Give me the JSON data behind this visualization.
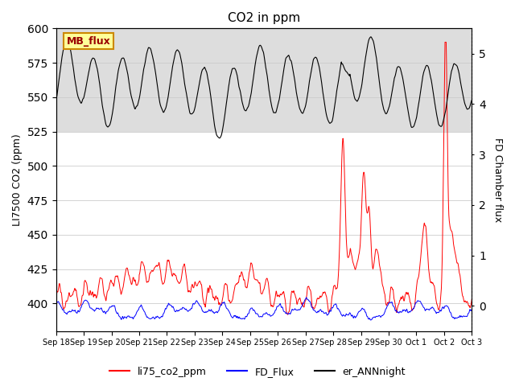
{
  "title": "CO2 in ppm",
  "ylabel_left": "LI7500 CO2 (ppm)",
  "ylabel_right": "FD Chamber flux",
  "ylim_left": [
    380,
    600
  ],
  "ylim_right": [
    -0.5,
    5.5
  ],
  "background_color": "#ffffff",
  "gray_band_low": 525,
  "gray_band_high": 600,
  "xlabel_dates": [
    "Sep 18",
    "Sep 19",
    "Sep 20",
    "Sep 21",
    "Sep 22",
    "Sep 23",
    "Sep 24",
    "Sep 25",
    "Sep 26",
    "Sep 27",
    "Sep 28",
    "Sep 29",
    "Sep 30",
    "Oct 1",
    "Oct 2",
    "Oct 3"
  ],
  "legend_entries": [
    "li75_co2_ppm",
    "FD_Flux",
    "er_ANNnight"
  ],
  "legend_colors": [
    "red",
    "blue",
    "black"
  ],
  "text_box": "MB_flux",
  "text_box_facecolor": "#ffff99",
  "text_box_edgecolor": "#cc8800",
  "text_box_textcolor": "#990000"
}
